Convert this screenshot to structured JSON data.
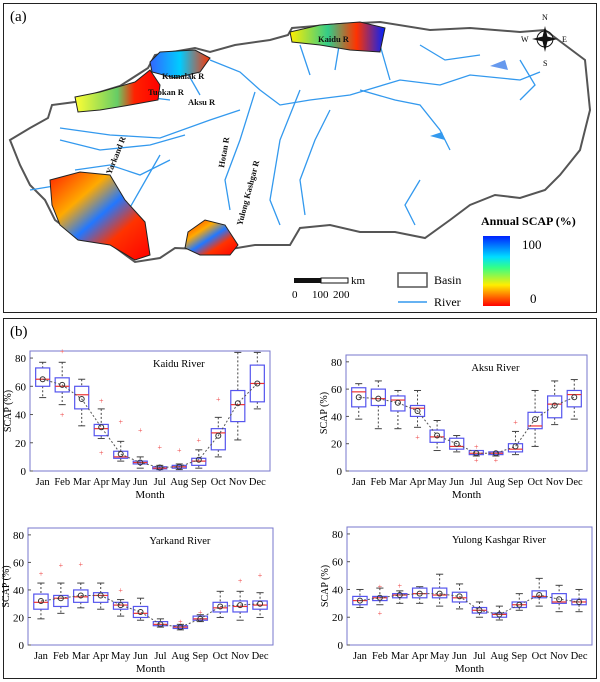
{
  "map": {
    "panel_label": "(a)",
    "rivers": [
      "Kaidu R",
      "Kumalak R",
      "Tuokan R",
      "Aksu R",
      "Yarkand R",
      "Hotan R",
      "Yulong Kashgar R"
    ],
    "compass": {
      "n": "N",
      "s": "S",
      "e": "E",
      "w": "W"
    },
    "colorbar": {
      "title": "Annual SCAP (%)",
      "max_label": "100",
      "min_label": "0",
      "colors": [
        "#ff0000",
        "#ffff00",
        "#00ffff",
        "#0000ff"
      ]
    },
    "scale_bar": {
      "unit": "km",
      "ticks": [
        "0",
        "100",
        "200"
      ]
    },
    "legend": {
      "basin": "Basin",
      "river": "River"
    },
    "river_color": "#3399ee"
  },
  "panel_b_label": "(b)",
  "chart_data": [
    {
      "type": "box",
      "title": "Kaidu River",
      "xlabel": "Month",
      "ylabel": "SCAP (%)",
      "ylim": [
        0,
        85
      ],
      "yticks": [
        0,
        20,
        40,
        60,
        80
      ],
      "categories": [
        "Jan",
        "Feb",
        "Mar",
        "Apr",
        "May",
        "Jun",
        "Jul",
        "Aug",
        "Sep",
        "Oct",
        "Nov",
        "Dec"
      ],
      "boxes": [
        {
          "low": 52,
          "q1": 60,
          "median": 65,
          "q3": 73,
          "high": 77,
          "mean": 65,
          "outliers": []
        },
        {
          "low": 47,
          "q1": 56,
          "median": 60,
          "q3": 66,
          "high": 77,
          "mean": 61,
          "outliers": [
            40,
            85
          ]
        },
        {
          "low": 32,
          "q1": 44,
          "median": 54,
          "q3": 60,
          "high": 65,
          "mean": 51,
          "outliers": []
        },
        {
          "low": 23,
          "q1": 25,
          "median": 30,
          "q3": 33,
          "high": 44,
          "mean": 31,
          "outliers": [
            50,
            13
          ]
        },
        {
          "low": 7,
          "q1": 9,
          "median": 10,
          "q3": 14,
          "high": 21,
          "mean": 12,
          "outliers": [
            35
          ]
        },
        {
          "low": 2,
          "q1": 5,
          "median": 6,
          "q3": 7,
          "high": 10,
          "mean": 6,
          "outliers": [
            29
          ]
        },
        {
          "low": 1,
          "q1": 1.5,
          "median": 2,
          "q3": 3,
          "high": 4,
          "mean": 2.5,
          "outliers": [
            17
          ]
        },
        {
          "low": 1,
          "q1": 2,
          "median": 3,
          "q3": 4,
          "high": 5,
          "mean": 3,
          "outliers": [
            15
          ]
        },
        {
          "low": 2,
          "q1": 4,
          "median": 7,
          "q3": 9,
          "high": 15,
          "mean": 8,
          "outliers": [
            22
          ]
        },
        {
          "low": 10,
          "q1": 15,
          "median": 27,
          "q3": 30,
          "high": 38,
          "mean": 25,
          "outliers": [
            51
          ]
        },
        {
          "low": 22,
          "q1": 35,
          "median": 47,
          "q3": 57,
          "high": 84,
          "mean": 48,
          "outliers": []
        },
        {
          "low": 44,
          "q1": 49,
          "median": 62,
          "q3": 75,
          "high": 84,
          "mean": 62,
          "outliers": []
        }
      ]
    },
    {
      "type": "box",
      "title": "Aksu River",
      "xlabel": "Month",
      "ylabel": "SCAP (%)",
      "ylim": [
        0,
        85
      ],
      "yticks": [
        0,
        20,
        40,
        60,
        80
      ],
      "categories": [
        "Jan",
        "Feb",
        "Mar",
        "Apr",
        "May",
        "Jun",
        "Jul",
        "Aug",
        "Sep",
        "Oct",
        "Nov",
        "Dec"
      ],
      "boxes": [
        {
          "low": 38,
          "q1": 47,
          "median": 58,
          "q3": 61,
          "high": 64,
          "mean": 54,
          "outliers": []
        },
        {
          "low": 31,
          "q1": 48,
          "median": 53,
          "q3": 60,
          "high": 66,
          "mean": 53,
          "outliers": []
        },
        {
          "low": 31,
          "q1": 44,
          "median": 52,
          "q3": 55,
          "high": 59,
          "mean": 50,
          "outliers": []
        },
        {
          "low": 32,
          "q1": 40,
          "median": 46,
          "q3": 48,
          "high": 59,
          "mean": 44,
          "outliers": [
            25
          ]
        },
        {
          "low": 15,
          "q1": 21,
          "median": 25,
          "q3": 30,
          "high": 37,
          "mean": 26,
          "outliers": []
        },
        {
          "low": 14,
          "q1": 16,
          "median": 18,
          "q3": 24,
          "high": 26,
          "mean": 20,
          "outliers": []
        },
        {
          "low": 11,
          "q1": 12,
          "median": 13,
          "q3": 15,
          "high": 15,
          "mean": 13,
          "outliers": [
            18,
            8
          ]
        },
        {
          "low": 11,
          "q1": 12,
          "median": 13,
          "q3": 14,
          "high": 14,
          "mean": 13,
          "outliers": [
            8
          ]
        },
        {
          "low": 12,
          "q1": 14,
          "median": 16,
          "q3": 20,
          "high": 29,
          "mean": 18,
          "outliers": [
            36
          ]
        },
        {
          "low": 18,
          "q1": 31,
          "median": 33,
          "q3": 43,
          "high": 59,
          "mean": 38,
          "outliers": []
        },
        {
          "low": 34,
          "q1": 39,
          "median": 49,
          "q3": 55,
          "high": 66,
          "mean": 48,
          "outliers": []
        },
        {
          "low": 38,
          "q1": 47,
          "median": 56,
          "q3": 59,
          "high": 67,
          "mean": 54,
          "outliers": []
        }
      ]
    },
    {
      "type": "box",
      "title": "Yarkand River",
      "xlabel": "Month",
      "ylabel": "SCAP (%)",
      "ylim": [
        0,
        85
      ],
      "yticks": [
        0,
        20,
        40,
        60,
        80
      ],
      "categories": [
        "Jan",
        "Feb",
        "Mar",
        "Apr",
        "May",
        "Jun",
        "Jul",
        "Aug",
        "Sep",
        "Oct",
        "Nov",
        "Dec"
      ],
      "boxes": [
        {
          "low": 19,
          "q1": 26,
          "median": 31,
          "q3": 37,
          "high": 45,
          "mean": 32,
          "outliers": [
            52
          ]
        },
        {
          "low": 23,
          "q1": 28,
          "median": 34,
          "q3": 36,
          "high": 45,
          "mean": 34,
          "outliers": [
            58
          ]
        },
        {
          "low": 27,
          "q1": 31,
          "median": 35,
          "q3": 40,
          "high": 45,
          "mean": 36,
          "outliers": [
            59
          ]
        },
        {
          "low": 26,
          "q1": 31,
          "median": 36,
          "q3": 38,
          "high": 45,
          "mean": 36,
          "outliers": []
        },
        {
          "low": 21,
          "q1": 26,
          "median": 29,
          "q3": 31,
          "high": 33,
          "mean": 29,
          "outliers": [
            40
          ]
        },
        {
          "low": 18,
          "q1": 20,
          "median": 23,
          "q3": 28,
          "high": 34,
          "mean": 24,
          "outliers": []
        },
        {
          "low": 13,
          "q1": 14,
          "median": 15,
          "q3": 17,
          "high": 19,
          "mean": 15,
          "outliers": []
        },
        {
          "low": 11,
          "q1": 12,
          "median": 13,
          "q3": 14,
          "high": 15,
          "mean": 13,
          "outliers": [
            17
          ]
        },
        {
          "low": 17,
          "q1": 18,
          "median": 19,
          "q3": 21,
          "high": 22,
          "mean": 19,
          "outliers": [
            24
          ]
        },
        {
          "low": 20,
          "q1": 24,
          "median": 27,
          "q3": 31,
          "high": 39,
          "mean": 28,
          "outliers": []
        },
        {
          "low": 18,
          "q1": 24,
          "median": 28,
          "q3": 32,
          "high": 39,
          "mean": 29,
          "outliers": [
            47
          ]
        },
        {
          "low": 20,
          "q1": 26,
          "median": 29,
          "q3": 32,
          "high": 38,
          "mean": 30,
          "outliers": [
            51
          ]
        }
      ]
    },
    {
      "type": "box",
      "title": "Yulong Kashgar River",
      "xlabel": "Month",
      "ylabel": "SCAP (%)",
      "ylim": [
        0,
        85
      ],
      "yticks": [
        0,
        20,
        40,
        60,
        80
      ],
      "categories": [
        "Jan",
        "Feb",
        "Mar",
        "Apr",
        "May",
        "Jun",
        "Jul",
        "Aug",
        "Sep",
        "Oct",
        "Nov",
        "Dec"
      ],
      "boxes": [
        {
          "low": 27,
          "q1": 29,
          "median": 32,
          "q3": 35,
          "high": 40,
          "mean": 32,
          "outliers": []
        },
        {
          "low": 29,
          "q1": 32,
          "median": 34,
          "q3": 35,
          "high": 41,
          "mean": 34,
          "outliers": [
            42,
            23
          ]
        },
        {
          "low": 30,
          "q1": 34,
          "median": 36,
          "q3": 37,
          "high": 39,
          "mean": 36,
          "outliers": [
            43
          ]
        },
        {
          "low": 30,
          "q1": 34,
          "median": 37,
          "q3": 41,
          "high": 42,
          "mean": 37,
          "outliers": []
        },
        {
          "low": 28,
          "q1": 34,
          "median": 36,
          "q3": 41,
          "high": 51,
          "mean": 37,
          "outliers": []
        },
        {
          "low": 26,
          "q1": 31,
          "median": 34,
          "q3": 38,
          "high": 44,
          "mean": 35,
          "outliers": []
        },
        {
          "low": 20,
          "q1": 23,
          "median": 25,
          "q3": 27,
          "high": 31,
          "mean": 25,
          "outliers": []
        },
        {
          "low": 18,
          "q1": 20,
          "median": 22,
          "q3": 23,
          "high": 28,
          "mean": 22,
          "outliers": []
        },
        {
          "low": 25,
          "q1": 27,
          "median": 29,
          "q3": 31,
          "high": 37,
          "mean": 29,
          "outliers": []
        },
        {
          "low": 28,
          "q1": 34,
          "median": 35,
          "q3": 39,
          "high": 48,
          "mean": 36,
          "outliers": []
        },
        {
          "low": 24,
          "q1": 30,
          "median": 31,
          "q3": 37,
          "high": 43,
          "mean": 33,
          "outliers": []
        },
        {
          "low": 24,
          "q1": 29,
          "median": 31,
          "q3": 33,
          "high": 40,
          "mean": 31,
          "outliers": []
        }
      ]
    }
  ]
}
